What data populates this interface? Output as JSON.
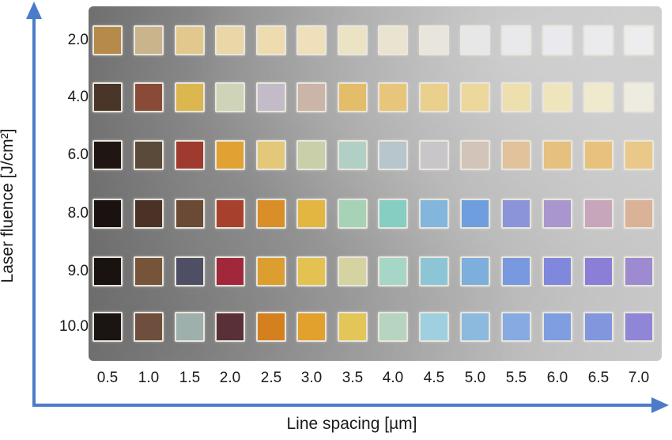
{
  "figure": {
    "y_axis_title": "Laser fluence [J/cm²]",
    "x_axis_title": "Line spacing [µm]",
    "y_ticks": [
      "2.0",
      "4.0",
      "6.0",
      "8.0",
      "9.0",
      "10.0"
    ],
    "x_ticks": [
      "0.5",
      "1.0",
      "1.5",
      "2.0",
      "2.5",
      "3.0",
      "3.5",
      "4.0",
      "4.5",
      "5.0",
      "5.5",
      "6.0",
      "6.5",
      "7.0"
    ],
    "axis_color": "#4a7cc9",
    "swatch_colors": [
      [
        "#b58a4a",
        "#c9b48c",
        "#e3c88e",
        "#ead7a8",
        "#eedcb0",
        "#efe0bb",
        "#ece2c4",
        "#e9e4cf",
        "#e8e6dc",
        "#e7e7e7",
        "#e9e9ec",
        "#eaeaee",
        "#ebebee",
        "#ededee"
      ],
      [
        "#4a3628",
        "#8a4a38",
        "#dcb64e",
        "#cfd3b8",
        "#c3bcc8",
        "#cbb4a8",
        "#e3bd6a",
        "#e7c57a",
        "#ebcf8c",
        "#ecd79c",
        "#eedfae",
        "#efe5bd",
        "#efe9ce",
        "#eeece0"
      ],
      [
        "#1f1512",
        "#5a4a3a",
        "#9e3a2e",
        "#e0a232",
        "#e2c878",
        "#c9cfa8",
        "#b2cfc6",
        "#b6c6cc",
        "#c8c6c8",
        "#d2c4b9",
        "#e2c29a",
        "#e6c07e",
        "#e8c27c",
        "#e9c88a"
      ],
      [
        "#1a1210",
        "#4a3226",
        "#6a4a34",
        "#a8402e",
        "#d98e28",
        "#e3b642",
        "#a6d2b6",
        "#86cdc2",
        "#82b6dc",
        "#6f9ede",
        "#8b94d8",
        "#a996cf",
        "#c7a6bc",
        "#d9b298"
      ],
      [
        "#1a1210",
        "#76543a",
        "#4e4e64",
        "#a0283a",
        "#dc9e2e",
        "#e4c252",
        "#d6d3a2",
        "#a6d6c6",
        "#8cc6d6",
        "#7eaedc",
        "#7898e0",
        "#7f88dc",
        "#8a7ed6",
        "#9d8ad0"
      ],
      [
        "#1a1412",
        "#6e4e3c",
        "#9eb0ac",
        "#5a3038",
        "#d4801e",
        "#e2a02c",
        "#e4c658",
        "#b6d4c0",
        "#9ed0e0",
        "#8cbade",
        "#86aae2",
        "#7f9ee2",
        "#8296de",
        "#8f86d8"
      ]
    ]
  }
}
